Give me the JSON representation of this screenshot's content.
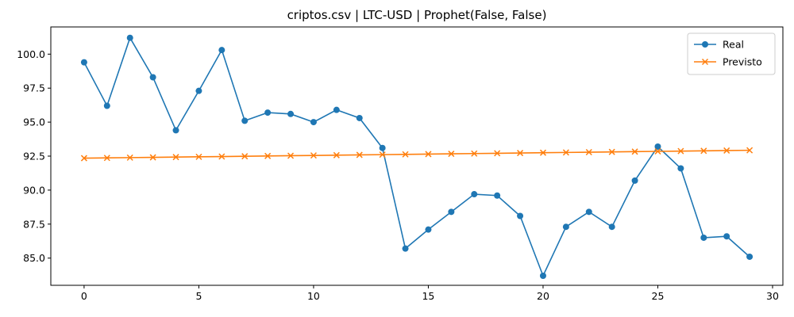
{
  "chart_data": {
    "type": "line",
    "title": "criptos.csv | LTC-USD | Prophet(False, False)",
    "xlabel": "",
    "ylabel": "",
    "xlim": [
      -1.45,
      30.45
    ],
    "ylim": [
      83.0,
      102.0
    ],
    "xticks": [
      0,
      5,
      10,
      15,
      20,
      25,
      30
    ],
    "yticks": [
      85.0,
      87.5,
      90.0,
      92.5,
      95.0,
      97.5,
      100.0
    ],
    "ytick_labels": [
      "85.0",
      "87.5",
      "90.0",
      "92.5",
      "95.0",
      "97.5",
      "100.0"
    ],
    "grid": false,
    "legend_position": "top-right",
    "x": [
      0,
      1,
      2,
      3,
      4,
      5,
      6,
      7,
      8,
      9,
      10,
      11,
      12,
      13,
      14,
      15,
      16,
      17,
      18,
      19,
      20,
      21,
      22,
      23,
      24,
      25,
      26,
      27,
      28,
      29
    ],
    "series": [
      {
        "name": "Real",
        "color": "#1f77b4",
        "marker": "circle",
        "values": [
          99.4,
          96.2,
          101.2,
          98.3,
          94.4,
          97.3,
          100.3,
          95.1,
          95.7,
          95.6,
          95.0,
          95.9,
          95.3,
          93.1,
          85.7,
          87.1,
          88.4,
          89.7,
          89.6,
          88.1,
          83.7,
          87.3,
          88.4,
          87.3,
          90.7,
          93.2,
          91.6,
          86.5,
          86.6,
          85.1
        ]
      },
      {
        "name": "Previsto",
        "color": "#ff7f0e",
        "marker": "x",
        "values": [
          92.35,
          92.37,
          92.39,
          92.41,
          92.43,
          92.45,
          92.47,
          92.49,
          92.51,
          92.53,
          92.55,
          92.57,
          92.59,
          92.61,
          92.63,
          92.65,
          92.67,
          92.69,
          92.71,
          92.73,
          92.75,
          92.77,
          92.79,
          92.81,
          92.83,
          92.85,
          92.87,
          92.89,
          92.91,
          92.93
        ]
      }
    ]
  }
}
